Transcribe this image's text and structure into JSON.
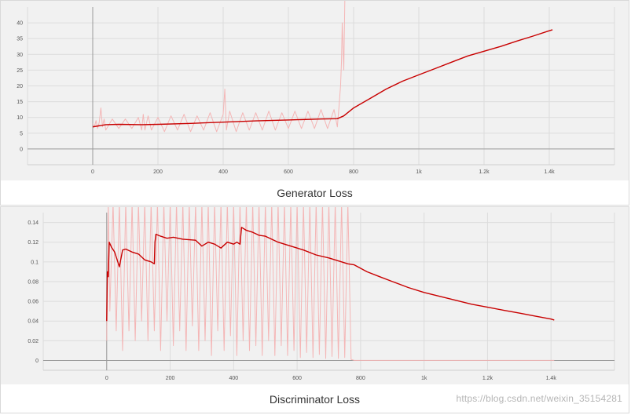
{
  "chart_data": [
    {
      "type": "line",
      "title": "Generator Loss",
      "xlim": [
        -200,
        1600
      ],
      "ylim": [
        -5,
        45
      ],
      "x_ticks": [
        0,
        200,
        400,
        600,
        800,
        1000,
        1200,
        1400
      ],
      "x_tick_labels": [
        "0",
        "200",
        "400",
        "600",
        "800",
        "1k",
        "1.2k",
        "1.4k"
      ],
      "y_ticks": [
        0,
        5,
        10,
        15,
        20,
        25,
        30,
        35,
        40
      ],
      "y_tick_labels": [
        "0",
        "5",
        "10",
        "15",
        "20",
        "25",
        "30",
        "35",
        "40"
      ],
      "grid": true,
      "series": [
        {
          "role": "raw",
          "color": "#f4b6b6",
          "x": [
            0,
            5,
            10,
            15,
            20,
            25,
            30,
            35,
            40,
            60,
            80,
            100,
            120,
            140,
            150,
            155,
            160,
            170,
            180,
            200,
            220,
            240,
            260,
            280,
            300,
            320,
            340,
            360,
            380,
            400,
            405,
            410,
            420,
            440,
            460,
            480,
            500,
            520,
            540,
            560,
            580,
            600,
            620,
            640,
            660,
            680,
            700,
            720,
            740,
            750,
            755,
            760,
            763,
            765,
            770,
            775
          ],
          "y": [
            8,
            7,
            9,
            6.5,
            8.5,
            13,
            7,
            9.5,
            6,
            9.5,
            6.5,
            9.5,
            6.5,
            10,
            6,
            11,
            6,
            10.5,
            6,
            10,
            5.5,
            10.5,
            6,
            11,
            5.5,
            10.5,
            6,
            11.5,
            5.5,
            11,
            19,
            6,
            12,
            5.5,
            11.5,
            6,
            11.5,
            6,
            12,
            6,
            11.5,
            6.5,
            12,
            6.5,
            12,
            6.5,
            12.5,
            6.5,
            12.5,
            7,
            13,
            20,
            28,
            40,
            25,
            60
          ]
        },
        {
          "role": "smoothed",
          "color": "#c80000",
          "x": [
            0,
            10,
            40,
            80,
            150,
            200,
            300,
            400,
            500,
            600,
            700,
            750,
            770,
            800,
            850,
            900,
            950,
            1000,
            1050,
            1100,
            1150,
            1200,
            1250,
            1300,
            1350,
            1400,
            1410
          ],
          "y": [
            7,
            7.2,
            7.7,
            7.8,
            7.7,
            7.8,
            8.1,
            8.5,
            8.9,
            9.2,
            9.5,
            9.6,
            10.5,
            13,
            16,
            19,
            21.5,
            23.5,
            25.5,
            27.5,
            29.5,
            31,
            32.5,
            34.2,
            35.8,
            37.5,
            37.8
          ]
        }
      ]
    },
    {
      "type": "line",
      "title": "Discriminator Loss",
      "xlim": [
        -200,
        1600
      ],
      "ylim": [
        -0.01,
        0.15
      ],
      "x_ticks": [
        0,
        200,
        400,
        600,
        800,
        1000,
        1200,
        1400
      ],
      "x_tick_labels": [
        "0",
        "200",
        "400",
        "600",
        "800",
        "1k",
        "1.2k",
        "1.4k"
      ],
      "y_ticks": [
        0,
        0.02,
        0.04,
        0.06,
        0.08,
        0.1,
        0.12,
        0.14
      ],
      "y_tick_labels": [
        "0",
        "0.02",
        "0.04",
        "0.06",
        "0.08",
        "0.1",
        "0.12",
        "0.14"
      ],
      "grid": true,
      "series": [
        {
          "role": "raw",
          "color": "#f4b6b6",
          "x": [
            0,
            5,
            10,
            20,
            30,
            40,
            50,
            60,
            70,
            80,
            90,
            100,
            110,
            120,
            130,
            140,
            150,
            160,
            170,
            180,
            190,
            200,
            210,
            220,
            230,
            240,
            250,
            260,
            270,
            280,
            290,
            300,
            310,
            320,
            330,
            340,
            350,
            360,
            370,
            380,
            390,
            400,
            410,
            420,
            430,
            440,
            450,
            460,
            470,
            480,
            490,
            500,
            510,
            520,
            530,
            540,
            550,
            560,
            570,
            580,
            590,
            600,
            610,
            620,
            630,
            640,
            650,
            660,
            670,
            680,
            690,
            700,
            710,
            720,
            730,
            740,
            750,
            760,
            770,
            780,
            1410
          ],
          "y": [
            0.02,
            0.16,
            0.05,
            0.16,
            0.03,
            0.16,
            0.01,
            0.16,
            0.03,
            0.16,
            0.02,
            0.16,
            0.04,
            0.16,
            0.02,
            0.16,
            0.03,
            0.16,
            0.01,
            0.16,
            0.04,
            0.16,
            0.015,
            0.16,
            0.03,
            0.16,
            0.01,
            0.16,
            0.035,
            0.16,
            0.01,
            0.16,
            0.02,
            0.16,
            0.005,
            0.16,
            0.03,
            0.16,
            0.01,
            0.16,
            0.025,
            0.16,
            0.005,
            0.16,
            0.02,
            0.16,
            0.01,
            0.16,
            0.015,
            0.16,
            0.005,
            0.16,
            0.02,
            0.16,
            0.005,
            0.16,
            0.015,
            0.16,
            0.005,
            0.16,
            0.01,
            0.16,
            0.003,
            0.16,
            0.008,
            0.16,
            0.003,
            0.16,
            0.006,
            0.16,
            0.002,
            0.16,
            0.004,
            0.16,
            0.002,
            0.16,
            0.003,
            0.16,
            0.001,
            0,
            0
          ]
        },
        {
          "role": "smoothed",
          "color": "#c80000",
          "x": [
            0,
            2,
            5,
            8,
            15,
            25,
            35,
            40,
            50,
            60,
            80,
            100,
            120,
            140,
            150,
            152,
            155,
            170,
            190,
            210,
            240,
            280,
            300,
            320,
            340,
            360,
            380,
            400,
            410,
            420,
            425,
            440,
            460,
            480,
            500,
            540,
            580,
            620,
            660,
            700,
            740,
            760,
            780,
            820,
            860,
            900,
            950,
            1000,
            1050,
            1100,
            1150,
            1200,
            1250,
            1300,
            1350,
            1400,
            1410
          ],
          "y": [
            0.04,
            0.09,
            0.085,
            0.12,
            0.115,
            0.11,
            0.1,
            0.095,
            0.112,
            0.113,
            0.11,
            0.108,
            0.102,
            0.1,
            0.098,
            0.12,
            0.128,
            0.126,
            0.124,
            0.125,
            0.123,
            0.122,
            0.116,
            0.12,
            0.118,
            0.114,
            0.12,
            0.118,
            0.12,
            0.118,
            0.135,
            0.132,
            0.13,
            0.127,
            0.126,
            0.12,
            0.116,
            0.112,
            0.107,
            0.104,
            0.1,
            0.098,
            0.097,
            0.09,
            0.085,
            0.08,
            0.074,
            0.069,
            0.065,
            0.061,
            0.057,
            0.054,
            0.051,
            0.048,
            0.045,
            0.042,
            0.041
          ]
        }
      ]
    }
  ],
  "watermark": "https://blog.csdn.net/weixin_35154281"
}
